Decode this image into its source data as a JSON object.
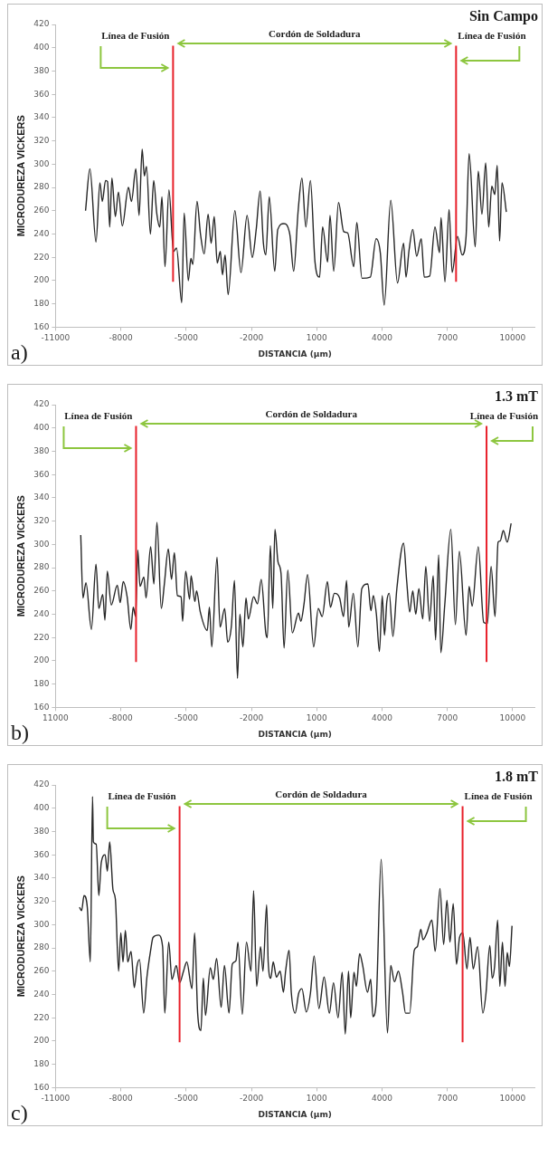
{
  "chart_data": [
    {
      "type": "line",
      "title": "Sin Campo",
      "xlabel": "DISTANCIA (µm)",
      "ylabel": "MICRODUREZA VICKERS",
      "annotations": [
        "Cordón de Soldadura",
        "a)"
      ],
      "xlim": [
        -11000,
        11000
      ],
      "xticks": [
        -11000,
        -8000,
        -5000,
        -2000,
        1000,
        4000,
        7000,
        10000
      ],
      "ylim": [
        160,
        420
      ],
      "yticks": [
        160,
        180,
        200,
        220,
        240,
        260,
        280,
        300,
        320,
        340,
        360,
        380,
        400,
        420
      ],
      "ref_lines": [
        {
          "axis": "x",
          "value": -5600,
          "label": "Línea de Fusión",
          "color": "#e8202a"
        },
        {
          "axis": "x",
          "value": 7400,
          "label": "Línea de Fusión",
          "color": "#e8202a"
        }
      ],
      "series": [
        {
          "color": "#262626",
          "x": [
            -9620,
            -9420,
            -9140,
            -8960,
            -8850,
            -8700,
            -8610,
            -8510,
            -8410,
            -8250,
            -8110,
            -7930,
            -7650,
            -7510,
            -7310,
            -7160,
            -7020,
            -6920,
            -6820,
            -6640,
            -6490,
            -6350,
            -6210,
            -6110,
            -5970,
            -5790,
            -5580,
            -5440,
            -5200,
            -5090,
            -4900,
            -4780,
            -4690,
            -4500,
            -4340,
            -4170,
            -3990,
            -3850,
            -3710,
            -3570,
            -3430,
            -3330,
            -3210,
            -3070,
            -2760,
            -2480,
            -2200,
            -1960,
            -1780,
            -1600,
            -1450,
            -1340,
            -1180,
            -930,
            -790,
            -510,
            -230,
            -60,
            150,
            320,
            500,
            710,
            920,
            1130,
            1270,
            1500,
            1610,
            1780,
            2000,
            2240,
            2420,
            2700,
            2840,
            3080,
            3460,
            3730,
            3920,
            4100,
            4400,
            4710,
            4990,
            5100,
            5240,
            5410,
            5590,
            5800,
            5940,
            6190,
            6430,
            6640,
            6710,
            6890,
            7080,
            7220,
            7470,
            7680,
            7860,
            8000,
            8280,
            8420,
            8590,
            8760,
            8900,
            9040,
            9180,
            9290,
            9400,
            9510,
            9710
          ],
          "values": [
            260,
            296,
            233,
            284,
            268,
            286,
            285,
            246,
            288,
            255,
            276,
            247,
            280,
            268,
            296,
            256,
            313,
            290,
            298,
            240,
            286,
            258,
            246,
            272,
            212,
            278,
            225,
            228,
            181,
            258,
            200,
            219,
            214,
            268,
            240,
            223,
            257,
            232,
            255,
            215,
            225,
            205,
            222,
            188,
            260,
            207,
            256,
            220,
            244,
            277,
            232,
            222,
            272,
            208,
            244,
            249,
            239,
            208,
            261,
            288,
            246,
            286,
            216,
            203,
            246,
            216,
            256,
            208,
            267,
            242,
            241,
            212,
            250,
            202,
            203,
            236,
            224,
            179,
            269,
            198,
            232,
            203,
            226,
            244,
            221,
            236,
            203,
            204,
            246,
            224,
            254,
            199,
            261,
            207,
            238,
            222,
            238,
            309,
            229,
            294,
            257,
            301,
            246,
            281,
            274,
            299,
            234,
            284,
            259
          ]
        }
      ]
    },
    {
      "type": "line",
      "title": "1.3 mT",
      "xlabel": "DISTANCIA (µm)",
      "ylabel": "MICRODUREZA VICKERS",
      "annotations": [
        "Cordón de Soldadura",
        "b)"
      ],
      "xlim": [
        -11000,
        11000
      ],
      "xticks": [
        {
          "value": -11000,
          "label": "11000"
        },
        -8000,
        -5000,
        -2000,
        1000,
        4000,
        7000,
        10000
      ],
      "ylim": [
        160,
        420
      ],
      "yticks": [
        160,
        180,
        200,
        220,
        240,
        260,
        280,
        300,
        320,
        340,
        360,
        380,
        400,
        420
      ],
      "ref_lines": [
        {
          "axis": "x",
          "value": -7300,
          "label": "Línea de Fusión",
          "color": "#e8202a"
        },
        {
          "axis": "x",
          "value": 8800,
          "label": "Línea de Fusión",
          "color": "#e8202a"
        }
      ],
      "series": [
        {
          "color": "#262626",
          "x": [
            -9840,
            -9740,
            -9600,
            -9350,
            -9140,
            -9010,
            -8830,
            -8730,
            -8620,
            -8440,
            -8160,
            -8030,
            -7890,
            -7710,
            -7540,
            -7430,
            -7320,
            -7220,
            -7120,
            -6940,
            -6840,
            -6630,
            -6480,
            -6340,
            -6140,
            -6000,
            -5820,
            -5670,
            -5540,
            -5400,
            -5230,
            -5160,
            -5020,
            -4840,
            -4770,
            -4600,
            -4520,
            -4350,
            -4030,
            -3930,
            -3820,
            -3580,
            -3440,
            -3230,
            -3090,
            -2920,
            -2780,
            -2640,
            -2530,
            -2390,
            -2250,
            -2140,
            -1900,
            -1720,
            -1550,
            -1340,
            -1270,
            -1130,
            -1020,
            -920,
            -780,
            -640,
            -500,
            -330,
            -120,
            160,
            270,
            410,
            580,
            860,
            1070,
            1250,
            1490,
            1630,
            1810,
            2050,
            2230,
            2370,
            2470,
            2680,
            2890,
            3070,
            3350,
            3490,
            3600,
            3740,
            3880,
            4010,
            4110,
            4220,
            4330,
            4500,
            4680,
            4990,
            5130,
            5270,
            5410,
            5550,
            5690,
            5870,
            6010,
            6180,
            6350,
            6460,
            6600,
            6700,
            6880,
            7160,
            7370,
            7550,
            7860,
            8000,
            8140,
            8420,
            8670,
            8840,
            9010,
            9190,
            9330,
            9430,
            9570,
            9750,
            9930
          ],
          "values": [
            308,
            254,
            267,
            227,
            283,
            245,
            257,
            235,
            277,
            248,
            265,
            250,
            268,
            255,
            227,
            246,
            238,
            295,
            264,
            272,
            254,
            298,
            266,
            319,
            245,
            266,
            296,
            270,
            293,
            256,
            255,
            234,
            277,
            253,
            273,
            251,
            260,
            242,
            226,
            246,
            212,
            289,
            229,
            245,
            216,
            230,
            269,
            185,
            240,
            212,
            254,
            236,
            255,
            249,
            270,
            224,
            220,
            299,
            245,
            313,
            285,
            275,
            211,
            278,
            224,
            241,
            234,
            248,
            274,
            212,
            245,
            238,
            268,
            246,
            258,
            254,
            238,
            269,
            229,
            258,
            212,
            262,
            266,
            243,
            256,
            240,
            208,
            256,
            222,
            251,
            258,
            221,
            262,
            301,
            269,
            242,
            260,
            240,
            262,
            236,
            281,
            234,
            273,
            218,
            291,
            207,
            248,
            313,
            231,
            294,
            222,
            264,
            247,
            298,
            233,
            232,
            281,
            238,
            302,
            303,
            312,
            302,
            318
          ]
        }
      ]
    },
    {
      "type": "line",
      "title": "1.8 mT",
      "xlabel": "DISTANCIA (µm)",
      "ylabel": "MICRODUREZA VICKERS",
      "annotations": [
        "Cordón de Soldadura",
        "c)"
      ],
      "xlim": [
        -11000,
        11000
      ],
      "xticks": [
        -11000,
        -8000,
        -5000,
        -2000,
        1000,
        4000,
        7000,
        10000
      ],
      "ylim": [
        160,
        420
      ],
      "yticks": [
        160,
        180,
        200,
        220,
        240,
        260,
        280,
        300,
        320,
        340,
        360,
        380,
        400,
        420
      ],
      "ref_lines": [
        {
          "axis": "x",
          "value": -5300,
          "label": "Línea de Fusión",
          "color": "#e8202a"
        },
        {
          "axis": "x",
          "value": 7700,
          "label": "Línea de Fusión",
          "color": "#e8202a"
        }
      ],
      "series": [
        {
          "color": "#262626",
          "x": [
            -9900,
            -9800,
            -9690,
            -9540,
            -9400,
            -9300,
            -9260,
            -9130,
            -9010,
            -8900,
            -8720,
            -8620,
            -8510,
            -8360,
            -8250,
            -8100,
            -8000,
            -7900,
            -7790,
            -7680,
            -7530,
            -7380,
            -7250,
            -7140,
            -6950,
            -6800,
            -6630,
            -6520,
            -6270,
            -6080,
            -5980,
            -5800,
            -5650,
            -5450,
            -5300,
            -5120,
            -4970,
            -4730,
            -4610,
            -4470,
            -4320,
            -4210,
            -4110,
            -3890,
            -3750,
            -3600,
            -3390,
            -3240,
            -3030,
            -2880,
            -2710,
            -2620,
            -2420,
            -2230,
            -2020,
            -1900,
            -1760,
            -1580,
            -1470,
            -1300,
            -1230,
            -1110,
            -1000,
            -850,
            -680,
            -530,
            -430,
            -270,
            -170,
            10,
            170,
            320,
            520,
            710,
            880,
            1100,
            1340,
            1580,
            1770,
            1980,
            2170,
            2310,
            2460,
            2560,
            2710,
            2820,
            2970,
            3110,
            3330,
            3480,
            3580,
            3730,
            3960,
            4250,
            4400,
            4570,
            4750,
            4940,
            5080,
            5270,
            5480,
            5620,
            5780,
            5880,
            6060,
            6290,
            6440,
            6660,
            6830,
            6980,
            7120,
            7270,
            7420,
            7560,
            7710,
            7900,
            8040,
            8190,
            8390,
            8630,
            8770,
            8950,
            9060,
            9170,
            9310,
            9410,
            9530,
            9650,
            9750,
            9850,
            9970
          ],
          "values": [
            315,
            312,
            325,
            315,
            268,
            410,
            371,
            369,
            325,
            353,
            360,
            346,
            371,
            330,
            322,
            260,
            293,
            268,
            295,
            268,
            277,
            246,
            265,
            270,
            224,
            255,
            278,
            289,
            291,
            281,
            224,
            285,
            253,
            265,
            250,
            260,
            268,
            245,
            293,
            224,
            209,
            254,
            222,
            263,
            253,
            271,
            229,
            265,
            224,
            266,
            269,
            285,
            223,
            285,
            260,
            329,
            247,
            281,
            260,
            317,
            268,
            254,
            268,
            255,
            260,
            242,
            260,
            278,
            242,
            224,
            241,
            245,
            225,
            241,
            273,
            228,
            255,
            224,
            250,
            220,
            259,
            206,
            260,
            220,
            259,
            247,
            275,
            265,
            242,
            253,
            221,
            233,
            356,
            207,
            265,
            251,
            260,
            242,
            224,
            224,
            278,
            281,
            296,
            287,
            293,
            304,
            277,
            331,
            283,
            321,
            285,
            318,
            266,
            289,
            293,
            262,
            289,
            262,
            281,
            224,
            240,
            282,
            254,
            264,
            304,
            247,
            285,
            247,
            276,
            264,
            299
          ]
        }
      ]
    }
  ]
}
